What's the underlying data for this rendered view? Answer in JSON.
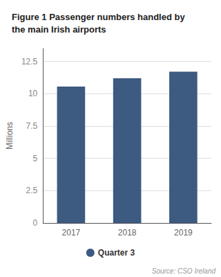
{
  "chart_data": {
    "type": "bar",
    "title": "Figure 1 Passenger numbers handled by\nthe main Irish airports",
    "categories": [
      "2017",
      "2018",
      "2019"
    ],
    "series": [
      {
        "name": "Quarter 3",
        "color": "#3d5a80",
        "values": [
          10.55,
          11.2,
          11.7
        ]
      }
    ],
    "ylabel": "Millions",
    "ylim": [
      0,
      13.5
    ],
    "yticks": [
      0,
      2.5,
      5,
      7.5,
      10,
      12.5
    ],
    "grid": true,
    "legend": "bottom",
    "annotations": [
      "Source: CSO Ireland"
    ]
  }
}
